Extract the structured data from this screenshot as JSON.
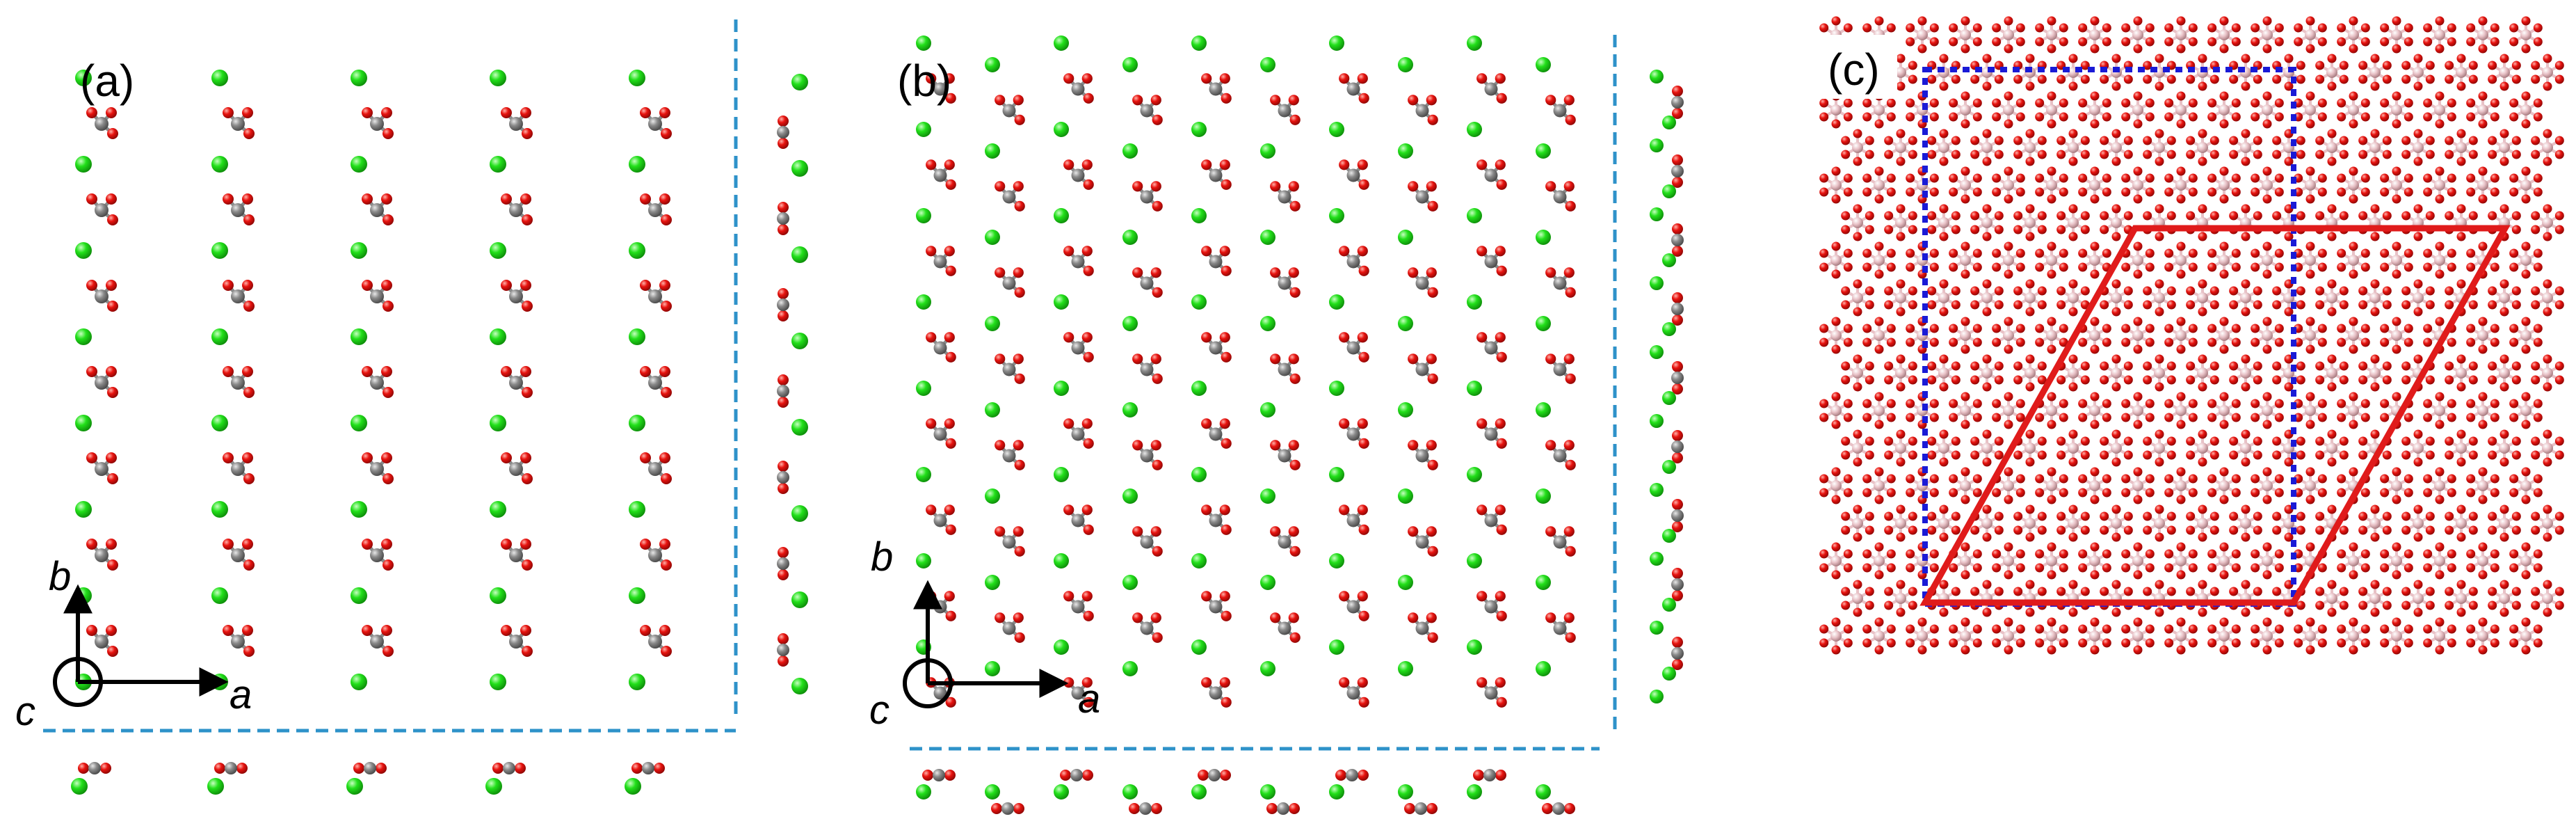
{
  "panels": {
    "a": {
      "label": "(a)",
      "axes": {
        "x": "a",
        "y": "b",
        "z": "c"
      }
    },
    "b": {
      "label": "(b)",
      "axes": {
        "x": "a",
        "y": "b",
        "z": "c"
      }
    },
    "c": {
      "label": "(c)"
    }
  },
  "colors": {
    "carbon": "#8a8a8a",
    "oxygen": "#e8130f",
    "metal": "#22e01a",
    "boron_like": "#e8c1c6",
    "divider": "#2e92c9",
    "supercell_blue": "#1a1ad6",
    "cell_red": "#e01b1b",
    "arrow": "#000000"
  },
  "icons": {
    "axis_out_of_plane": "circle-dot-icon",
    "axis_arrow": "arrow-icon"
  }
}
